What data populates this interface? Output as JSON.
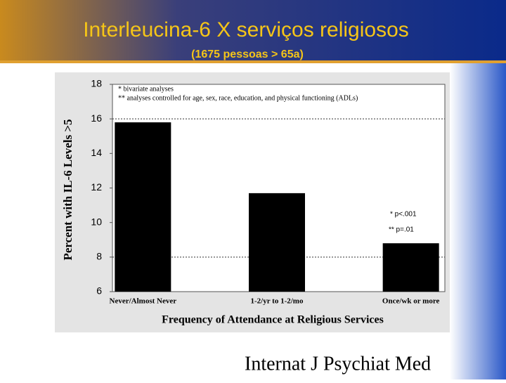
{
  "chart_data": {
    "type": "bar",
    "title": "Interleucina-6  X  serviços religiosos",
    "subtitle": "(1675 pessoas > 65a)",
    "y_label": "Percent with IL-6 Levels >5",
    "x_label": "Frequency of Attendance at Religious Services",
    "annotations": [
      "* bivariate analyses",
      "** analyses controlled for age, sex, race, education, and physical functioning (ADLs)",
      "* p<.001",
      "** p=.01"
    ],
    "source": "Internat J Psychiat Med",
    "categories": [
      "Never/Almost Never",
      "1-2/yr to 1-2/mo",
      "Once/wk or more"
    ],
    "values": [
      15.8,
      11.7,
      8.8
    ],
    "color": "#000000",
    "ylim": [
      6,
      18
    ],
    "yticks": [
      6,
      8,
      10,
      12,
      14,
      16,
      18
    ],
    "reference_lines": [
      8,
      16
    ]
  }
}
